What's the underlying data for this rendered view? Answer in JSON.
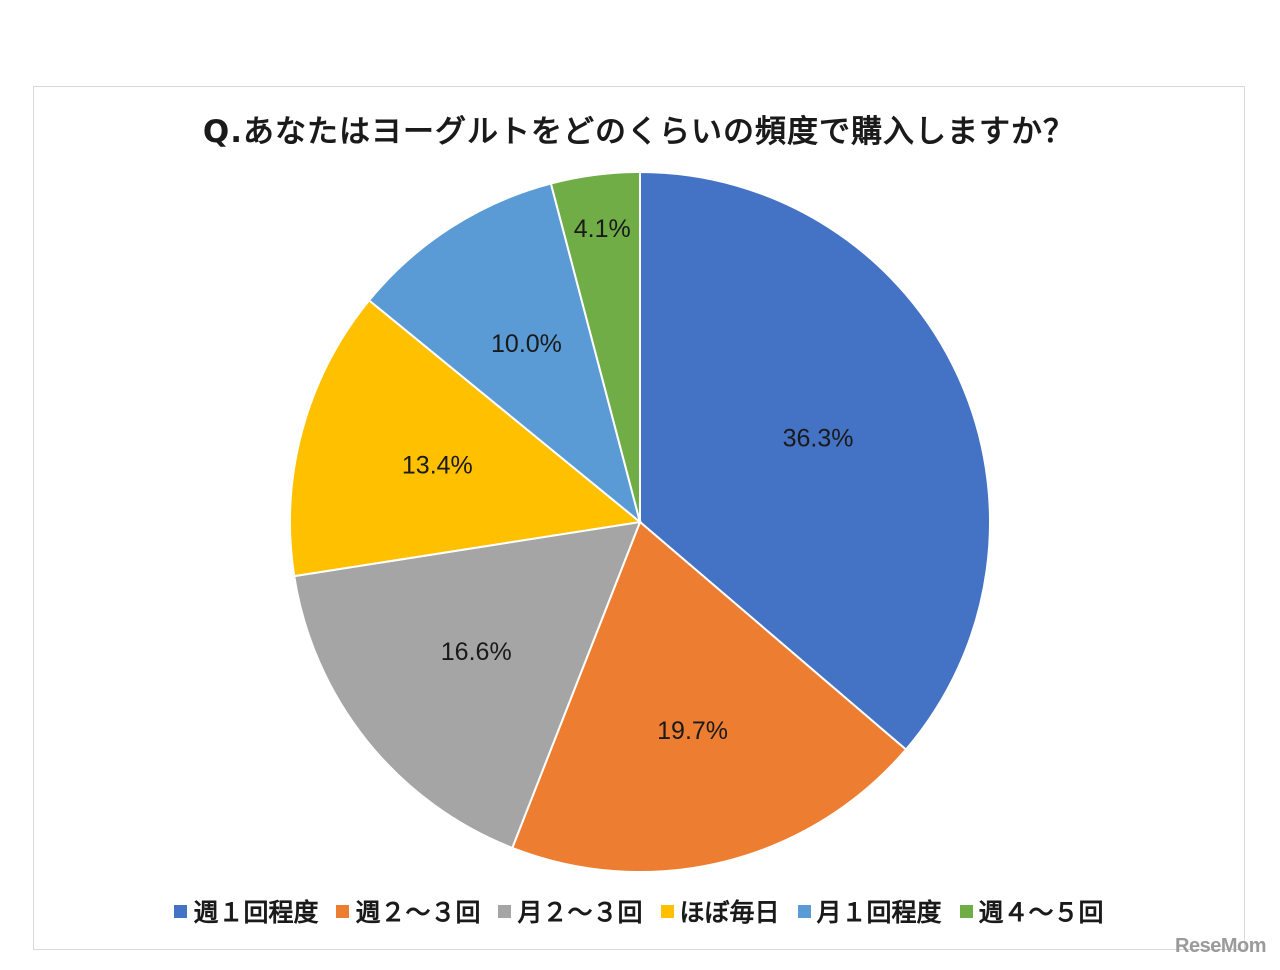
{
  "chart_data": {
    "type": "pie",
    "title": "Q.あなたはヨーグルトをどのくらいの頻度で購入しますか？",
    "slices": [
      {
        "label": "週１回程度",
        "value": 36.3,
        "display": "36.3%",
        "color": "#4472c4"
      },
      {
        "label": "週２～３回",
        "value": 19.7,
        "display": "19.7%",
        "color": "#ed7d31"
      },
      {
        "label": "月２～３回",
        "value": 16.6,
        "display": "16.6%",
        "color": "#a5a5a5"
      },
      {
        "label": "ほぼ毎日",
        "value": 13.4,
        "display": "13.4%",
        "color": "#ffc000"
      },
      {
        "label": "月１回程度",
        "value": 10.0,
        "display": "10.0%",
        "color": "#5b9bd5"
      },
      {
        "label": "週４～５回",
        "value": 4.1,
        "display": "4.1%",
        "color": "#70ad47"
      }
    ],
    "start_angle": "12 o'clock",
    "direction": "clockwise",
    "legend_position": "bottom"
  },
  "watermark": "ReseMom"
}
